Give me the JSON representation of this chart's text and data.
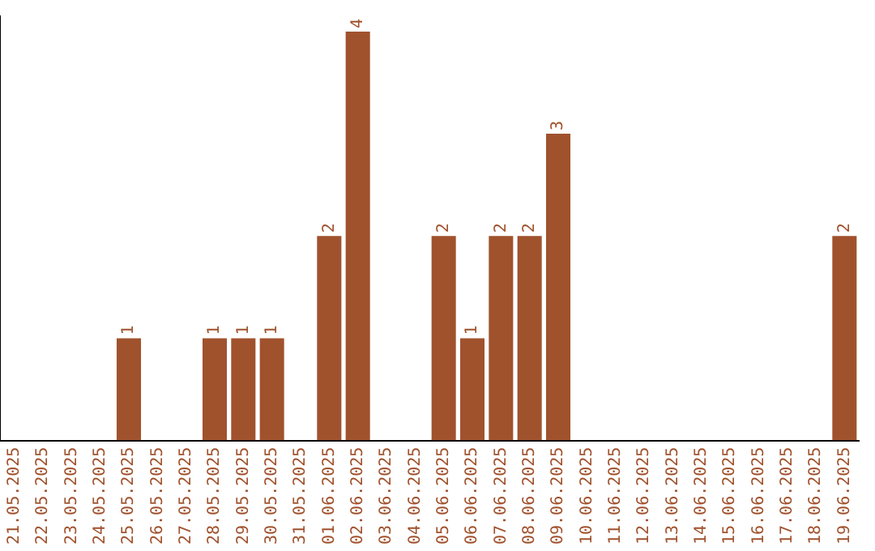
{
  "chart_data": {
    "type": "bar",
    "categories": [
      "21.05.2025",
      "22.05.2025",
      "23.05.2025",
      "24.05.2025",
      "25.05.2025",
      "26.05.2025",
      "27.05.2025",
      "28.05.2025",
      "29.05.2025",
      "30.05.2025",
      "31.05.2025",
      "01.06.2025",
      "02.06.2025",
      "03.06.2025",
      "04.06.2025",
      "05.06.2025",
      "06.06.2025",
      "07.06.2025",
      "08.06.2025",
      "09.06.2025",
      "10.06.2025",
      "11.06.2025",
      "12.06.2025",
      "13.06.2025",
      "14.06.2025",
      "15.06.2025",
      "16.06.2025",
      "17.06.2025",
      "18.06.2025",
      "19.06.2025"
    ],
    "values": [
      0,
      0,
      0,
      0,
      1,
      0,
      0,
      1,
      1,
      1,
      0,
      2,
      4,
      0,
      0,
      2,
      1,
      2,
      2,
      3,
      0,
      0,
      0,
      0,
      0,
      0,
      0,
      0,
      0,
      2
    ],
    "value_labels": [
      null,
      null,
      null,
      null,
      "1",
      null,
      null,
      "1",
      "1",
      "1",
      null,
      "2",
      "4",
      null,
      null,
      "2",
      "1",
      "2",
      "2",
      "3",
      null,
      null,
      null,
      null,
      null,
      null,
      null,
      null,
      null,
      "2"
    ],
    "color": "#a0522d",
    "ylim": [
      0,
      4.15
    ],
    "tick_labels": "x",
    "grid": false,
    "legend": false
  }
}
